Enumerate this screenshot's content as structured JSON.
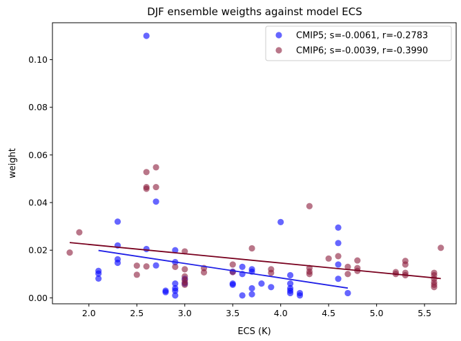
{
  "chart_data": {
    "type": "scatter",
    "title": "DJF ensemble weigths against model ECS",
    "xlabel": "ECS (K)",
    "ylabel": "weight",
    "xlim": [
      1.62,
      5.83
    ],
    "ylim": [
      -0.0025,
      0.1155
    ],
    "xticks": [
      2.0,
      2.5,
      3.0,
      3.5,
      4.0,
      4.5,
      5.0,
      5.5
    ],
    "xtick_labels": [
      "2.0",
      "2.5",
      "3.0",
      "3.5",
      "4.0",
      "4.5",
      "5.0",
      "5.5"
    ],
    "yticks": [
      0.0,
      0.02,
      0.04,
      0.06,
      0.08,
      0.1
    ],
    "ytick_labels": [
      "0.00",
      "0.02",
      "0.04",
      "0.06",
      "0.08",
      "0.10"
    ],
    "grid": false,
    "legend_position": "top-right",
    "series": [
      {
        "name": "CMIP5; s=-0.0061, r=-0.2783",
        "color": "#0000ff",
        "fit_color": "#1f1fe6",
        "fit": {
          "x": [
            2.1,
            4.7
          ],
          "y": [
            0.0199,
            0.0041
          ]
        },
        "points": [
          [
            2.1,
            0.0113
          ],
          [
            2.1,
            0.0102
          ],
          [
            2.1,
            0.0081
          ],
          [
            2.3,
            0.032
          ],
          [
            2.3,
            0.022
          ],
          [
            2.3,
            0.0162
          ],
          [
            2.3,
            0.0147
          ],
          [
            2.6,
            0.11
          ],
          [
            2.6,
            0.0205
          ],
          [
            2.7,
            0.0404
          ],
          [
            2.7,
            0.0136
          ],
          [
            2.8,
            0.003
          ],
          [
            2.8,
            0.0024
          ],
          [
            2.9,
            0.02
          ],
          [
            2.9,
            0.015
          ],
          [
            2.9,
            0.006
          ],
          [
            2.9,
            0.004
          ],
          [
            2.9,
            0.003
          ],
          [
            2.9,
            0.001
          ],
          [
            3.0,
            0.008
          ],
          [
            3.0,
            0.006
          ],
          [
            3.5,
            0.011
          ],
          [
            3.5,
            0.006
          ],
          [
            3.5,
            0.0055
          ],
          [
            3.6,
            0.013
          ],
          [
            3.6,
            0.01
          ],
          [
            3.6,
            0.001
          ],
          [
            3.7,
            0.012
          ],
          [
            3.7,
            0.011
          ],
          [
            3.7,
            0.004
          ],
          [
            3.7,
            0.0015
          ],
          [
            3.8,
            0.006
          ],
          [
            3.9,
            0.0045
          ],
          [
            4.0,
            0.0318
          ],
          [
            4.1,
            0.0095
          ],
          [
            4.1,
            0.006
          ],
          [
            4.1,
            0.004
          ],
          [
            4.1,
            0.003
          ],
          [
            4.1,
            0.002
          ],
          [
            4.2,
            0.002
          ],
          [
            4.2,
            0.001
          ],
          [
            4.6,
            0.0295
          ],
          [
            4.6,
            0.023
          ],
          [
            4.6,
            0.014
          ],
          [
            4.6,
            0.008
          ],
          [
            4.7,
            0.002
          ]
        ]
      },
      {
        "name": "CMIP6; s=-0.0039, r=-0.3990",
        "color": "#8b1a3a",
        "fit_color": "#78001e",
        "fit": {
          "x": [
            1.8,
            5.67
          ],
          "y": [
            0.0232,
            0.0081
          ]
        },
        "points": [
          [
            1.8,
            0.019
          ],
          [
            1.9,
            0.0275
          ],
          [
            2.5,
            0.0135
          ],
          [
            2.5,
            0.0097
          ],
          [
            2.6,
            0.0528
          ],
          [
            2.6,
            0.0465
          ],
          [
            2.6,
            0.0458
          ],
          [
            2.6,
            0.0132
          ],
          [
            2.7,
            0.0548
          ],
          [
            2.7,
            0.0465
          ],
          [
            2.9,
            0.013
          ],
          [
            3.0,
            0.0195
          ],
          [
            3.0,
            0.012
          ],
          [
            3.0,
            0.009
          ],
          [
            3.0,
            0.0075
          ],
          [
            3.0,
            0.0065
          ],
          [
            3.0,
            0.0055
          ],
          [
            3.2,
            0.0125
          ],
          [
            3.2,
            0.0107
          ],
          [
            3.5,
            0.014
          ],
          [
            3.5,
            0.0108
          ],
          [
            3.7,
            0.0208
          ],
          [
            3.9,
            0.012
          ],
          [
            3.9,
            0.0105
          ],
          [
            4.3,
            0.0385
          ],
          [
            4.3,
            0.0125
          ],
          [
            4.3,
            0.011
          ],
          [
            4.3,
            0.01
          ],
          [
            4.5,
            0.0165
          ],
          [
            4.6,
            0.0175
          ],
          [
            4.7,
            0.013
          ],
          [
            4.7,
            0.01
          ],
          [
            4.8,
            0.0157
          ],
          [
            4.8,
            0.0125
          ],
          [
            4.8,
            0.0113
          ],
          [
            5.2,
            0.0108
          ],
          [
            5.2,
            0.01
          ],
          [
            5.3,
            0.0155
          ],
          [
            5.3,
            0.014
          ],
          [
            5.3,
            0.0105
          ],
          [
            5.3,
            0.0095
          ],
          [
            5.6,
            0.0105
          ],
          [
            5.6,
            0.0095
          ],
          [
            5.6,
            0.008
          ],
          [
            5.6,
            0.0065
          ],
          [
            5.6,
            0.0055
          ],
          [
            5.6,
            0.0045
          ],
          [
            5.67,
            0.021
          ]
        ]
      }
    ]
  }
}
